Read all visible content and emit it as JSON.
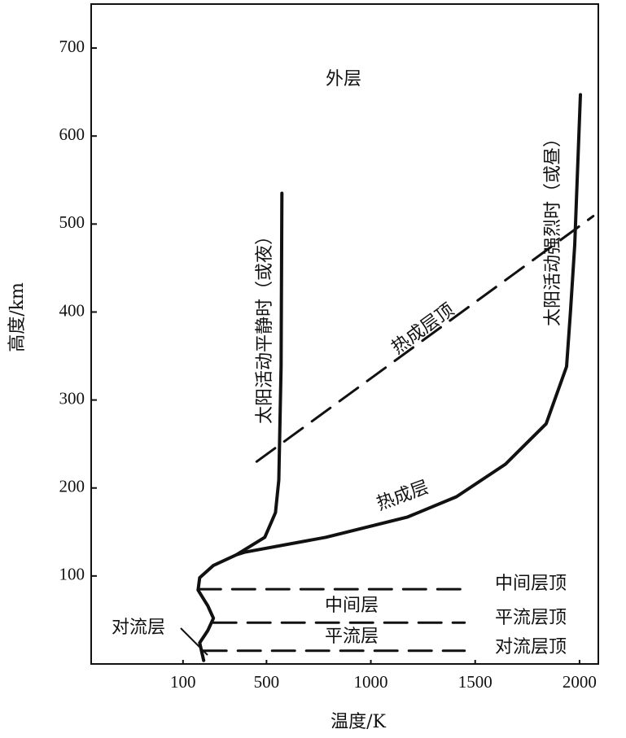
{
  "chart_data": {
    "type": "line",
    "x_label": "温度/K",
    "y_label": "高度/km",
    "xlim": [
      -340,
      2090
    ],
    "ylim": [
      0,
      750
    ],
    "xticks": [
      100,
      500,
      1000,
      1500,
      2000
    ],
    "yticks": [
      100,
      200,
      300,
      400,
      500,
      600,
      700
    ],
    "series": [
      {
        "name": "太阳活动平静时（或夜）",
        "color": "#111111",
        "dashed": false,
        "x": [
          199,
          180,
          219,
          246,
          219,
          172,
          180,
          246,
          355,
          492,
          543,
          559,
          563,
          570,
          574
        ],
        "values": [
          4,
          24,
          38,
          52,
          66,
          84,
          98,
          112,
          124,
          144,
          172,
          209,
          255,
          338,
          535
        ]
      },
      {
        "name": "太阳活动强烈时（或昼）",
        "color": "#111111",
        "dashed": false,
        "x": [
          355,
          395,
          785,
          1176,
          1410,
          1645,
          1840,
          1938,
          1957,
          1977,
          2004
        ],
        "values": [
          124,
          127,
          144,
          167,
          190,
          227,
          273,
          338,
          402,
          476,
          647
        ]
      },
      {
        "name": "热成层顶",
        "color": "#111111",
        "dashed": true,
        "x": [
          453,
          2066
        ],
        "values": [
          230,
          509
        ]
      },
      {
        "name": "中间层顶",
        "color": "#111111",
        "dashed": true,
        "x": [
          172,
          1449
        ],
        "values": [
          85,
          85
        ]
      },
      {
        "name": "平流层顶",
        "color": "#111111",
        "dashed": true,
        "x": [
          246,
          1449
        ],
        "values": [
          47,
          47
        ]
      },
      {
        "name": "对流层顶",
        "color": "#111111",
        "dashed": true,
        "x": [
          199,
          1449
        ],
        "values": [
          15,
          15
        ]
      }
    ],
    "annotations": [
      "外层",
      "热成层",
      "中间层",
      "平流层",
      "对流层"
    ]
  }
}
